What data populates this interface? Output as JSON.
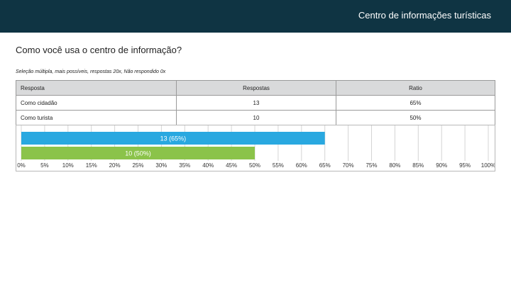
{
  "header": {
    "title": "Centro de informações turísticas"
  },
  "question": {
    "title": "Como você usa o centro de informação?"
  },
  "subtitle": "Seleção múltipla, mais possíveis, respostas 20x, Não respondido 0x",
  "table": {
    "headers": [
      "Resposta",
      "Respostas",
      "Ratio"
    ],
    "rows": [
      {
        "answer": "Como cidadão",
        "count": "13",
        "ratio": "65%"
      },
      {
        "answer": "Como turista",
        "count": "10",
        "ratio": "50%"
      }
    ]
  },
  "chart_data": {
    "type": "bar",
    "orientation": "horizontal",
    "categories": [
      "Como cidadão",
      "Como turista"
    ],
    "values": [
      65,
      50
    ],
    "data_labels": [
      "13 (65%)",
      "10 (50%)"
    ],
    "colors": [
      "#29a8e0",
      "#8bc34a"
    ],
    "xlim": [
      0,
      100
    ],
    "x_ticks": [
      "0%",
      "5%",
      "10%",
      "15%",
      "20%",
      "25%",
      "30%",
      "35%",
      "40%",
      "45%",
      "50%",
      "55%",
      "60%",
      "65%",
      "70%",
      "75%",
      "80%",
      "85%",
      "90%",
      "95%",
      "100%"
    ],
    "grid": true,
    "legend": "none"
  }
}
